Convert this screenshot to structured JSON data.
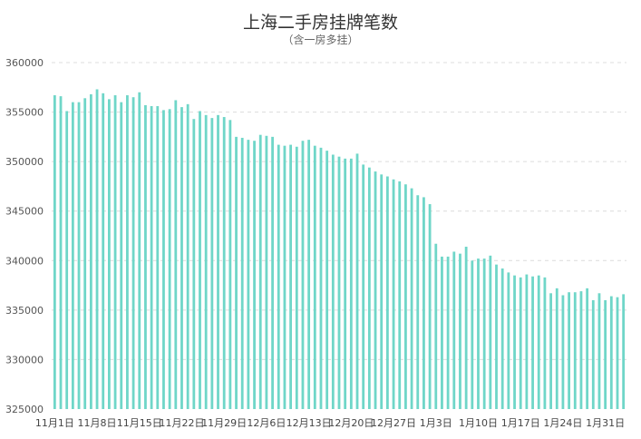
{
  "chart_data": {
    "type": "bar",
    "title": "上海二手房挂牌笔数",
    "subtitle": "（含一房多挂）",
    "xlabel": "",
    "ylabel": "",
    "ylim": [
      325000,
      360000
    ],
    "yticks": [
      325000,
      330000,
      335000,
      340000,
      345000,
      350000,
      355000,
      360000
    ],
    "grid": true,
    "bar_color": "#6fd6c8",
    "x_tick_labels": [
      "11月1日",
      "11月8日",
      "11月15日",
      "11月22日",
      "11月29日",
      "12月6日",
      "12月13日",
      "12月20日",
      "12月27日",
      "1月3日",
      "1月10日",
      "1月17日",
      "1月24日",
      "1月31日"
    ],
    "values": [
      356700,
      356600,
      355100,
      356000,
      356000,
      356400,
      356800,
      357300,
      356900,
      356300,
      356700,
      356000,
      356700,
      356500,
      357000,
      355700,
      355600,
      355600,
      355200,
      355300,
      356200,
      355500,
      355800,
      354300,
      355100,
      354700,
      354400,
      354700,
      354500,
      354200,
      352500,
      352400,
      352200,
      352100,
      352700,
      352600,
      352500,
      351700,
      351600,
      351700,
      351500,
      352100,
      352200,
      351600,
      351400,
      351100,
      350700,
      350500,
      350300,
      350300,
      350800,
      349700,
      349400,
      349000,
      348700,
      348500,
      348200,
      348000,
      347700,
      347300,
      346600,
      346400,
      345700,
      341700,
      340400,
      340400,
      340900,
      340700,
      341400,
      340000,
      340200,
      340200,
      340500,
      339600,
      339200,
      338800,
      338500,
      338300,
      338600,
      338400,
      338500,
      338300,
      336700,
      337200,
      336500,
      336800,
      336800,
      336900,
      337200,
      336000,
      336700,
      336000,
      336400,
      336300,
      336600
    ]
  }
}
